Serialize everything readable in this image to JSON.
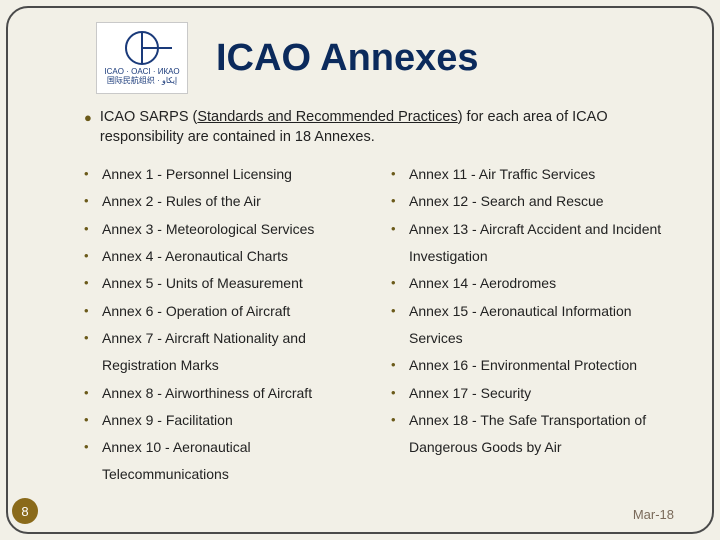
{
  "logo": {
    "line1": "ICAO · OACI · ИКАО",
    "line2": "国际民航组织 · إيكاو"
  },
  "title": "ICAO Annexes",
  "intro": {
    "prefix": "ICAO SARPS (",
    "underlined": "Standards and Recommended Practices",
    "suffix": ") for each area of ICAO responsibility are contained in 18 Annexes."
  },
  "left": [
    "Annex 1 - Personnel Licensing",
    "Annex 2 - Rules of the Air",
    "Annex 3 - Meteorological Services",
    "Annex 4 - Aeronautical Charts",
    "Annex 5 - Units of Measurement",
    "Annex 6 - Operation of Aircraft",
    "Annex 7 - Aircraft Nationality and Registration Marks",
    "Annex 8 - Airworthiness of Aircraft",
    "Annex 9 - Facilitation",
    "Annex 10 - Aeronautical Telecommunications"
  ],
  "right": [
    "Annex 11 - Air Traffic Services",
    "Annex 12 - Search and Rescue",
    "Annex 13 - Aircraft Accident and Incident Investigation",
    "Annex 14 - Aerodromes",
    "Annex 15 - Aeronautical Information Services",
    "Annex 16 - Environmental Protection",
    "Annex 17 - Security",
    "Annex 18 - The Safe Transportation of Dangerous Goods by Air"
  ],
  "page_number": "8",
  "date": "Mar-18",
  "colors": {
    "title": "#0b2a5c",
    "bullet": "#6b5a1a",
    "page_badge": "#8a6a1a",
    "background": "#f2f0e7",
    "frame_border": "#4a4a4a",
    "date": "#7a6a5a"
  }
}
